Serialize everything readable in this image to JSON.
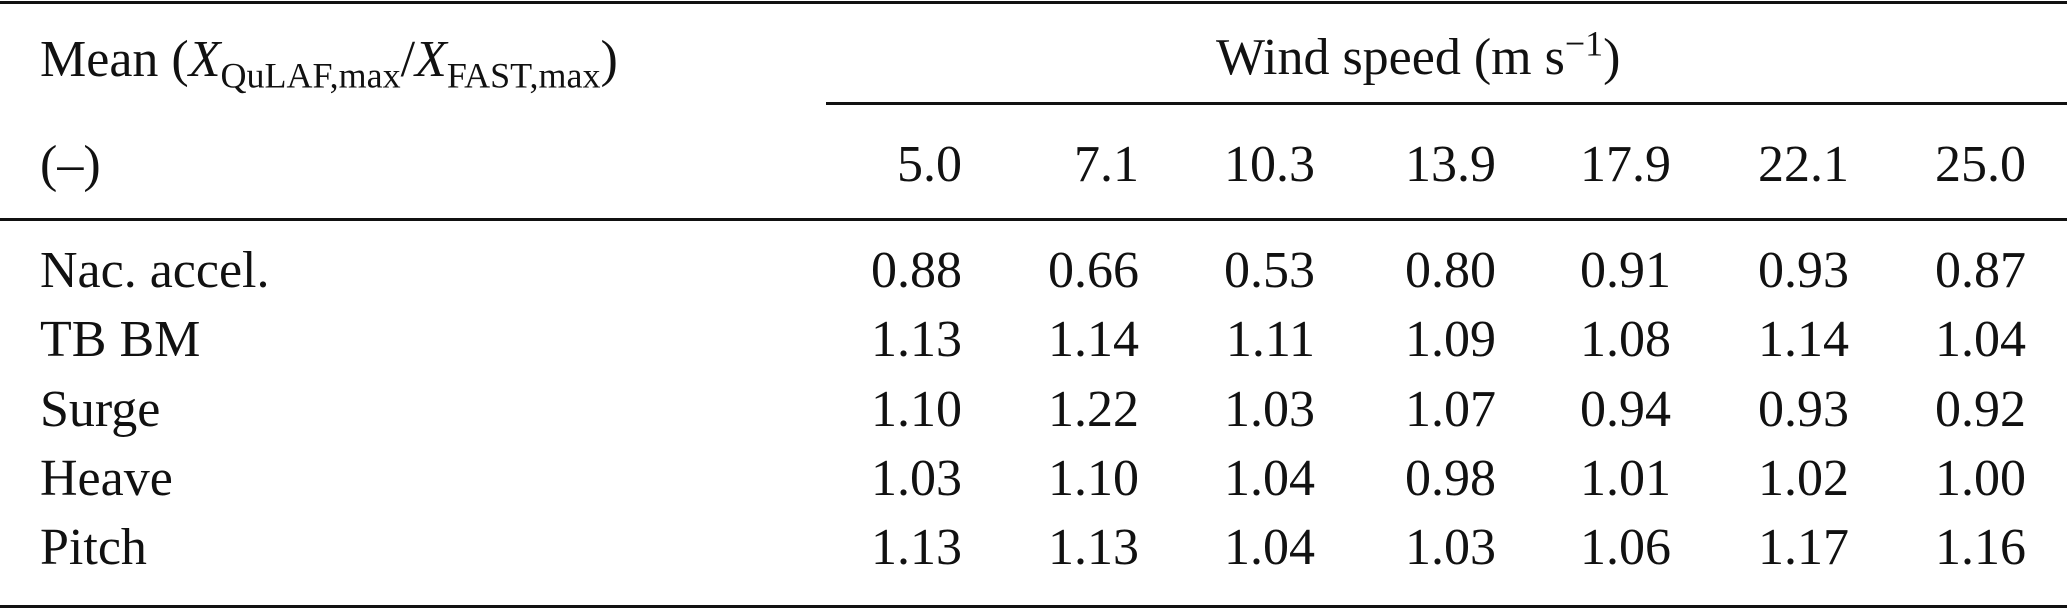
{
  "table": {
    "header": {
      "stub": {
        "prefix": "Mean (",
        "var1": "X",
        "sub1": "QuLAF,max",
        "slash": "/",
        "var2": "X",
        "sub2": "FAST,max",
        "suffix": ")"
      },
      "unit": "(–)",
      "group": {
        "text": "Wind speed (m s",
        "sup": "−1",
        "suffix": ")"
      },
      "columns": [
        "5.0",
        "7.1",
        "10.3",
        "13.9",
        "17.9",
        "22.1",
        "25.0"
      ]
    },
    "rows": [
      {
        "label": "Nac. accel.",
        "values": [
          "0.88",
          "0.66",
          "0.53",
          "0.80",
          "0.91",
          "0.93",
          "0.87"
        ]
      },
      {
        "label": "TB BM",
        "values": [
          "1.13",
          "1.14",
          "1.11",
          "1.09",
          "1.08",
          "1.14",
          "1.04"
        ]
      },
      {
        "label": "Surge",
        "values": [
          "1.10",
          "1.22",
          "1.03",
          "1.07",
          "0.94",
          "0.93",
          "0.92"
        ]
      },
      {
        "label": "Heave",
        "values": [
          "1.03",
          "1.10",
          "1.04",
          "0.98",
          "1.01",
          "1.02",
          "1.00"
        ]
      },
      {
        "label": "Pitch",
        "values": [
          "1.13",
          "1.13",
          "1.04",
          "1.03",
          "1.06",
          "1.17",
          "1.16"
        ]
      }
    ]
  }
}
